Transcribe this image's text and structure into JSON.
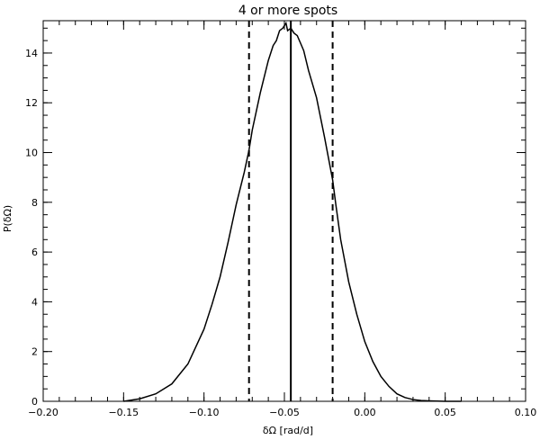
{
  "chart_data": {
    "type": "line",
    "title": "4 or more spots",
    "xlabel": "δΩ [rad/d]",
    "ylabel": "P(δΩ)",
    "xlim": [
      -0.2,
      0.1
    ],
    "ylim": [
      0,
      15.3
    ],
    "xticks": [
      "−0.20",
      "−0.15",
      "−0.10",
      "−0.05",
      "0.00",
      "0.05",
      "0.10"
    ],
    "xtick_values": [
      -0.2,
      -0.15,
      -0.1,
      -0.05,
      0.0,
      0.05,
      0.1
    ],
    "yticks": [
      "0",
      "2",
      "4",
      "6",
      "8",
      "10",
      "12",
      "14"
    ],
    "ytick_values": [
      0,
      2,
      4,
      6,
      8,
      10,
      12,
      14
    ],
    "series": [
      {
        "x": [
          -0.15,
          -0.14,
          -0.13,
          -0.12,
          -0.11,
          -0.1,
          -0.095,
          -0.09,
          -0.085,
          -0.08,
          -0.075,
          -0.072,
          -0.07,
          -0.065,
          -0.06,
          -0.057,
          -0.055,
          -0.053,
          -0.051,
          -0.049,
          -0.048,
          -0.046,
          -0.044,
          -0.042,
          -0.04,
          -0.038,
          -0.035,
          -0.03,
          -0.025,
          -0.02,
          -0.018,
          -0.015,
          -0.01,
          -0.005,
          0.0,
          0.005,
          0.01,
          0.015,
          0.02,
          0.025,
          0.03,
          0.035,
          0.04,
          0.045,
          0.05,
          0.055,
          0.06
        ],
        "y": [
          0.0,
          0.1,
          0.3,
          0.7,
          1.5,
          2.9,
          3.9,
          5.0,
          6.4,
          7.9,
          9.2,
          10.1,
          10.9,
          12.4,
          13.7,
          14.3,
          14.5,
          14.9,
          15.0,
          15.2,
          14.9,
          15.0,
          14.8,
          14.7,
          14.4,
          14.1,
          13.3,
          12.2,
          10.6,
          8.9,
          7.9,
          6.5,
          4.8,
          3.5,
          2.4,
          1.6,
          1.0,
          0.6,
          0.3,
          0.15,
          0.07,
          0.03,
          0.02,
          0.01,
          0.0,
          0.0,
          0.0
        ]
      }
    ],
    "vlines": [
      {
        "x": -0.046,
        "style": "solid"
      },
      {
        "x": -0.072,
        "style": "dashed"
      },
      {
        "x": -0.02,
        "style": "dashed"
      }
    ],
    "grid": false,
    "legend": "none"
  }
}
